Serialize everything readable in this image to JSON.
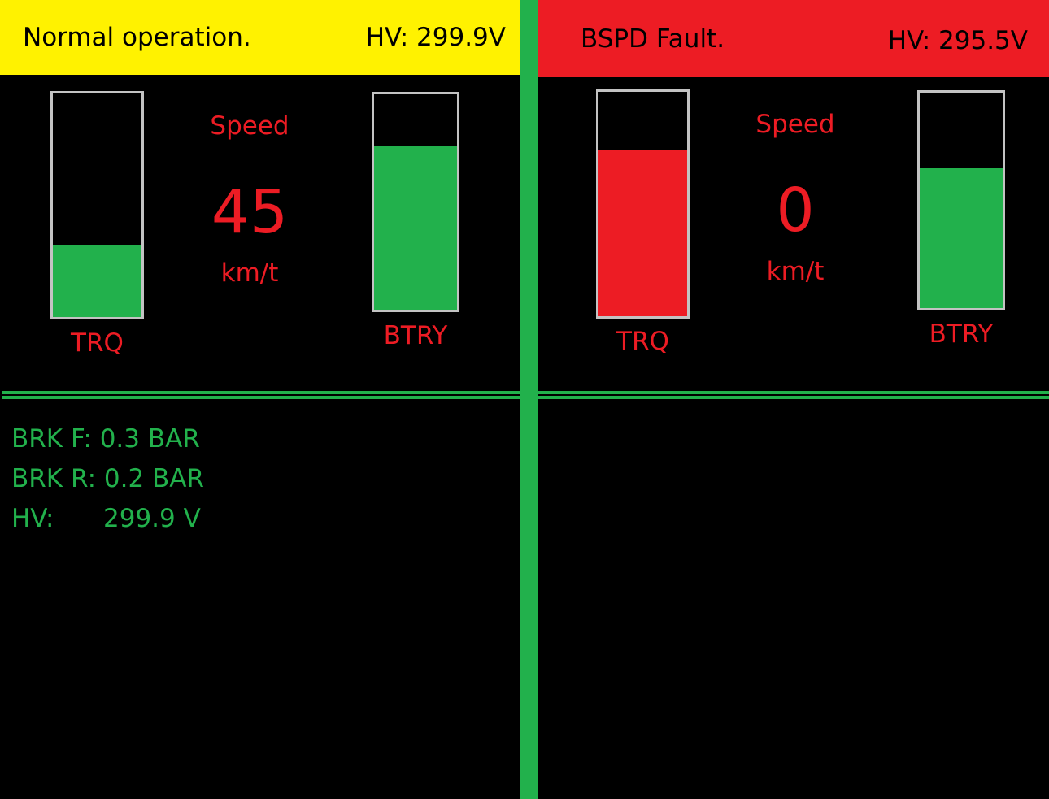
{
  "colors": {
    "green": "#22b14c",
    "red": "#ed1c24",
    "yellow": "#fff200",
    "gauge_border": "#c3c3c3",
    "background": "#000000"
  },
  "left": {
    "status": "Normal operation.",
    "hv_header": "HV: 299.9V",
    "header_color": "#fff200",
    "trq": {
      "label": "TRQ",
      "level": 0.32,
      "color": "#22b14c"
    },
    "btry": {
      "label": "BTRY",
      "level": 0.76,
      "color": "#22b14c"
    },
    "speed": {
      "label": "Speed",
      "value": "45",
      "unit": "km/t"
    },
    "readouts": {
      "brk_f": "BRK F: 0.3 BAR",
      "brk_r": "BRK R: 0.2 BAR",
      "hv_label": "HV:",
      "hv_value": "299.9 V"
    }
  },
  "right": {
    "status": "BSPD Fault.",
    "hv_header": "HV: 295.5V",
    "header_color": "#ed1c24",
    "trq": {
      "label": "TRQ",
      "level": 0.74,
      "color": "#ed1c24"
    },
    "btry": {
      "label": "BTRY",
      "level": 0.65,
      "color": "#22b14c"
    },
    "speed": {
      "label": "Speed",
      "value": "0",
      "unit": "km/t"
    }
  }
}
